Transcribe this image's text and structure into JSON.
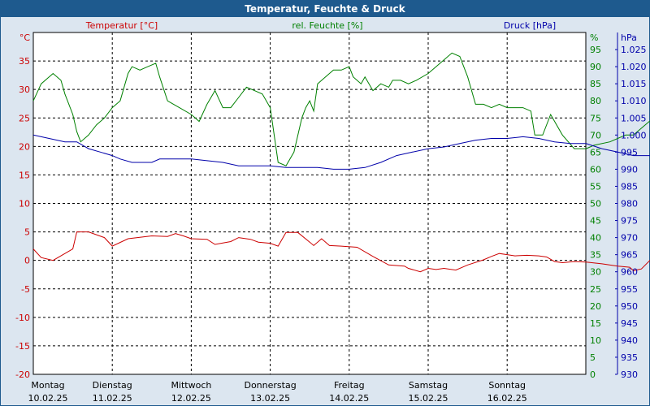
{
  "window": {
    "title": "Temperatur, Feuchte & Druck"
  },
  "chart_data": {
    "type": "line",
    "title": "Temperatur, Feuchte & Druck",
    "x": {
      "days": [
        {
          "weekday": "Montag",
          "date": "10.02.25"
        },
        {
          "weekday": "Dienstag",
          "date": "11.02.25"
        },
        {
          "weekday": "Mittwoch",
          "date": "12.02.25"
        },
        {
          "weekday": "Donnerstag",
          "date": "13.02.25"
        },
        {
          "weekday": "Freitag",
          "date": "14.02.25"
        },
        {
          "weekday": "Samstag",
          "date": "15.02.25"
        },
        {
          "weekday": "Sonntag",
          "date": "16.02.25"
        }
      ]
    },
    "axes": {
      "temperature": {
        "label": "Temperatur [°C]",
        "unit": "°C",
        "min": -20,
        "max": 40,
        "step": 5,
        "color": "#cc0000"
      },
      "humidity": {
        "label": "rel. Feuchte [%]",
        "unit": "%",
        "min": 0,
        "max": 100,
        "step": 5,
        "color": "#008000"
      },
      "pressure": {
        "label": "Druck [hPa]",
        "unit": "hPa",
        "min": 930,
        "max": 1030,
        "step": 5,
        "color": "#0000aa"
      }
    },
    "grid": true,
    "series": [
      {
        "name": "Temperatur [°C]",
        "axis": "temperature",
        "color": "#cc0000",
        "points": [
          [
            0,
            2
          ],
          [
            0.1,
            0.5
          ],
          [
            0.25,
            0
          ],
          [
            0.5,
            2
          ],
          [
            0.55,
            5
          ],
          [
            0.7,
            5
          ],
          [
            0.9,
            4
          ],
          [
            1.0,
            2.5
          ],
          [
            1.2,
            3.8
          ],
          [
            1.5,
            4.3
          ],
          [
            1.7,
            4.2
          ],
          [
            1.8,
            4.7
          ],
          [
            1.9,
            4.3
          ],
          [
            2.0,
            3.8
          ],
          [
            2.2,
            3.7
          ],
          [
            2.3,
            2.8
          ],
          [
            2.5,
            3.3
          ],
          [
            2.6,
            4
          ],
          [
            2.75,
            3.7
          ],
          [
            2.85,
            3.2
          ],
          [
            3.0,
            3
          ],
          [
            3.1,
            2.5
          ],
          [
            3.2,
            4.9
          ],
          [
            3.35,
            4.9
          ],
          [
            3.5,
            3.2
          ],
          [
            3.55,
            2.6
          ],
          [
            3.65,
            3.8
          ],
          [
            3.75,
            2.6
          ],
          [
            3.9,
            2.5
          ],
          [
            4.1,
            2.3
          ],
          [
            4.3,
            0.7
          ],
          [
            4.5,
            -0.8
          ],
          [
            4.7,
            -1
          ],
          [
            4.75,
            -1.4
          ],
          [
            4.9,
            -2
          ],
          [
            5.0,
            -1.4
          ],
          [
            5.1,
            -1.6
          ],
          [
            5.2,
            -1.4
          ],
          [
            5.35,
            -1.7
          ],
          [
            5.5,
            -0.8
          ],
          [
            5.7,
            0.1
          ],
          [
            5.8,
            0.7
          ],
          [
            5.9,
            1.2
          ],
          [
            6.0,
            1
          ],
          [
            6.1,
            0.8
          ],
          [
            6.25,
            0.9
          ],
          [
            6.4,
            0.8
          ],
          [
            6.5,
            0.6
          ],
          [
            6.6,
            -0.2
          ],
          [
            6.7,
            -0.4
          ],
          [
            6.85,
            -0.2
          ],
          [
            7.0,
            -0.3
          ],
          [
            7.2,
            -0.6
          ],
          [
            7.4,
            -1
          ],
          [
            7.55,
            -1.2
          ],
          [
            7.6,
            -1.8
          ],
          [
            7.7,
            -1.5
          ],
          [
            7.85,
            0.6
          ],
          [
            8.0,
            1.8
          ],
          [
            8.1,
            2.6
          ],
          [
            8.2,
            1.2
          ],
          [
            8.3,
            0
          ],
          [
            8.4,
            -1.5
          ],
          [
            8.5,
            -2.4
          ]
        ]
      },
      {
        "name": "rel. Feuchte [%]",
        "axis": "humidity",
        "color": "#008000",
        "points": [
          [
            0,
            80
          ],
          [
            0.1,
            85
          ],
          [
            0.25,
            88
          ],
          [
            0.35,
            86
          ],
          [
            0.4,
            82
          ],
          [
            0.5,
            76
          ],
          [
            0.55,
            71
          ],
          [
            0.6,
            68
          ],
          [
            0.7,
            70
          ],
          [
            0.8,
            73
          ],
          [
            0.9,
            75
          ],
          [
            1.0,
            78
          ],
          [
            1.1,
            80
          ],
          [
            1.2,
            88
          ],
          [
            1.25,
            90
          ],
          [
            1.35,
            89
          ],
          [
            1.45,
            90
          ],
          [
            1.55,
            91
          ],
          [
            1.6,
            87
          ],
          [
            1.7,
            80
          ],
          [
            1.85,
            78
          ],
          [
            2.0,
            76
          ],
          [
            2.1,
            74
          ],
          [
            2.2,
            79
          ],
          [
            2.3,
            83
          ],
          [
            2.4,
            78
          ],
          [
            2.5,
            78
          ],
          [
            2.6,
            81
          ],
          [
            2.7,
            84
          ],
          [
            2.8,
            83
          ],
          [
            2.9,
            82
          ],
          [
            3.0,
            78
          ],
          [
            3.1,
            62
          ],
          [
            3.2,
            61
          ],
          [
            3.3,
            65
          ],
          [
            3.4,
            75
          ],
          [
            3.45,
            78
          ],
          [
            3.5,
            80
          ],
          [
            3.55,
            77
          ],
          [
            3.6,
            85
          ],
          [
            3.7,
            87
          ],
          [
            3.8,
            89
          ],
          [
            3.9,
            89
          ],
          [
            4.0,
            90
          ],
          [
            4.05,
            87
          ],
          [
            4.15,
            85
          ],
          [
            4.2,
            87
          ],
          [
            4.3,
            83
          ],
          [
            4.4,
            85
          ],
          [
            4.5,
            84
          ],
          [
            4.55,
            86
          ],
          [
            4.65,
            86
          ],
          [
            4.75,
            85
          ],
          [
            4.85,
            86
          ],
          [
            5.0,
            88
          ],
          [
            5.1,
            90
          ],
          [
            5.2,
            92
          ],
          [
            5.3,
            94
          ],
          [
            5.4,
            93
          ],
          [
            5.5,
            87
          ],
          [
            5.6,
            79
          ],
          [
            5.7,
            79
          ],
          [
            5.8,
            78
          ],
          [
            5.9,
            79
          ],
          [
            6.0,
            78
          ],
          [
            6.2,
            78
          ],
          [
            6.3,
            77
          ],
          [
            6.35,
            70
          ],
          [
            6.45,
            70
          ],
          [
            6.55,
            76
          ],
          [
            6.7,
            70
          ],
          [
            6.85,
            66
          ],
          [
            7.0,
            66
          ],
          [
            7.1,
            67
          ],
          [
            7.3,
            68
          ],
          [
            7.5,
            70
          ],
          [
            7.6,
            70
          ],
          [
            7.7,
            72
          ],
          [
            7.8,
            74
          ],
          [
            7.9,
            75
          ],
          [
            8.0,
            76
          ],
          [
            8.05,
            70
          ],
          [
            8.15,
            60
          ],
          [
            8.3,
            55
          ],
          [
            8.4,
            56
          ],
          [
            8.5,
            60
          ],
          [
            8.65,
            68
          ],
          [
            8.75,
            75
          ]
        ]
      },
      {
        "name": "Druck [hPa]",
        "axis": "pressure",
        "color": "#0000aa",
        "points": [
          [
            0,
            1000
          ],
          [
            0.2,
            999
          ],
          [
            0.4,
            998
          ],
          [
            0.55,
            998
          ],
          [
            0.7,
            996
          ],
          [
            0.85,
            995
          ],
          [
            1.0,
            994
          ],
          [
            1.1,
            993
          ],
          [
            1.25,
            992
          ],
          [
            1.4,
            992
          ],
          [
            1.5,
            992
          ],
          [
            1.6,
            993
          ],
          [
            1.8,
            993
          ],
          [
            2.0,
            993
          ],
          [
            2.2,
            992.5
          ],
          [
            2.4,
            992
          ],
          [
            2.6,
            991
          ],
          [
            2.8,
            991
          ],
          [
            3.0,
            991
          ],
          [
            3.2,
            990.5
          ],
          [
            3.4,
            990.5
          ],
          [
            3.6,
            990.5
          ],
          [
            3.8,
            990
          ],
          [
            4.0,
            990
          ],
          [
            4.2,
            990.5
          ],
          [
            4.4,
            992
          ],
          [
            4.6,
            994
          ],
          [
            4.8,
            995
          ],
          [
            5.0,
            996
          ],
          [
            5.2,
            996.5
          ],
          [
            5.4,
            997.5
          ],
          [
            5.6,
            998.5
          ],
          [
            5.8,
            999
          ],
          [
            6.0,
            999
          ],
          [
            6.2,
            999.5
          ],
          [
            6.4,
            999
          ],
          [
            6.6,
            998
          ],
          [
            6.8,
            997.5
          ],
          [
            7.0,
            997.5
          ],
          [
            7.2,
            996
          ],
          [
            7.4,
            995
          ],
          [
            7.6,
            994
          ],
          [
            7.8,
            994
          ],
          [
            8.0,
            994
          ],
          [
            8.2,
            994
          ],
          [
            8.4,
            994
          ],
          [
            8.55,
            995
          ],
          [
            8.75,
            995
          ]
        ]
      }
    ]
  }
}
